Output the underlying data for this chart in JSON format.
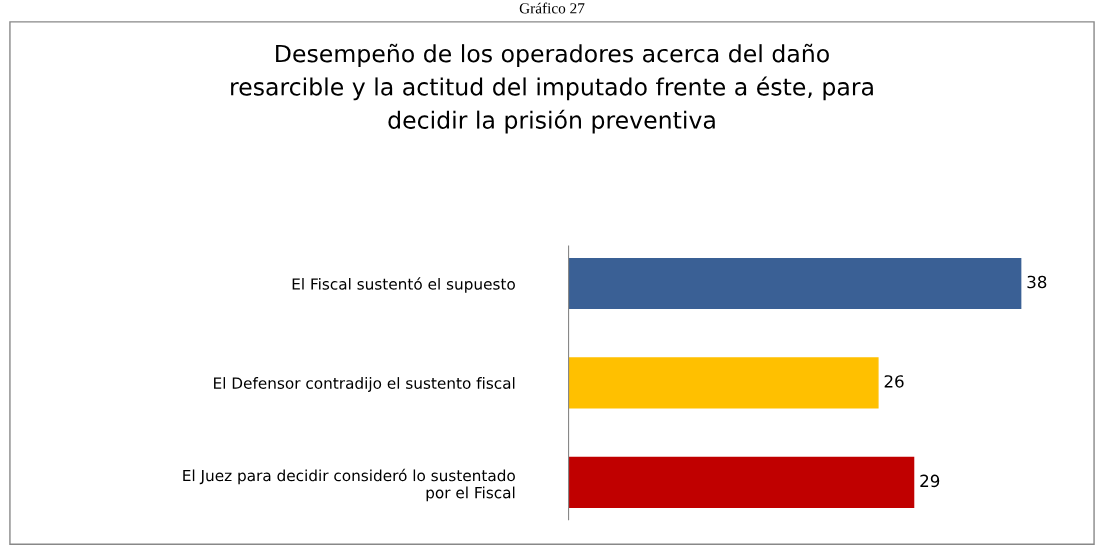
{
  "chart_data": {
    "type": "bar",
    "orientation": "horizontal",
    "title": "Desempeño de los operadores acerca del daño\nresarcible y la actitud del imputado frente a éste, para\ndecidir la prisión preventiva",
    "annotations": [
      "Gráfico 27"
    ],
    "categories": [
      "El Fiscal sustentó el supuesto",
      "El Defensor contradijo el sustento fiscal",
      "El Juez para decidir consideró lo sustentado\npor el Fiscal"
    ],
    "values": [
      38,
      26,
      29
    ],
    "colors": [
      "#3a6095",
      "#ffc000",
      "#c00000"
    ],
    "data_labels": true,
    "grid": false,
    "legend": false
  }
}
